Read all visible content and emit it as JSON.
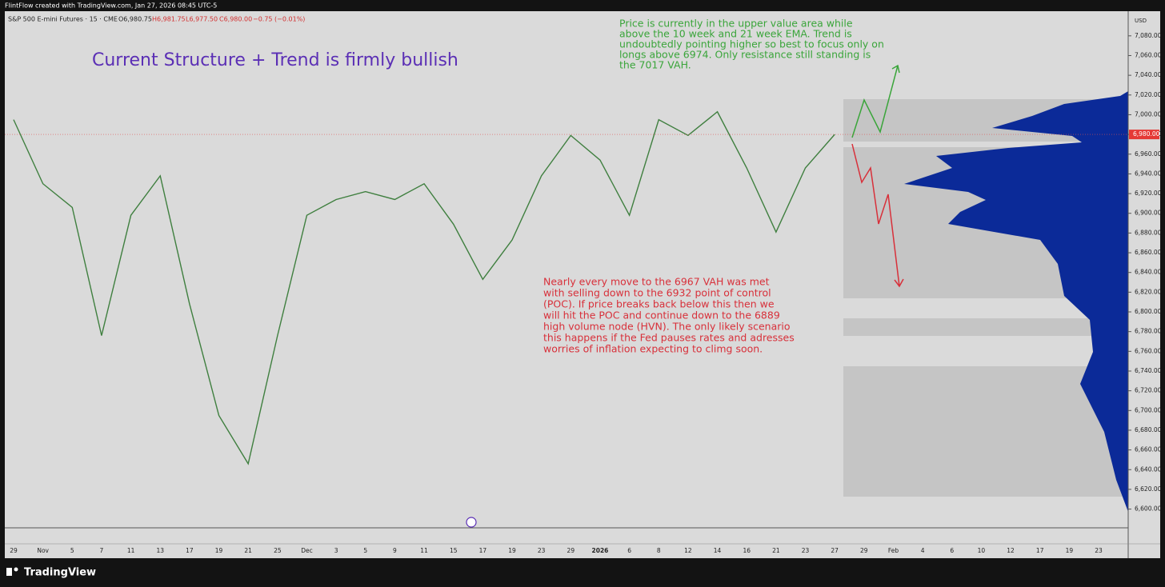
{
  "header": "FlintFlow created with TradingView.com, Jan 27, 2026 08:45 UTC-5",
  "footer": "TradingView",
  "chart_data": {
    "type": "line",
    "symbol": "S&P 500 E-mini Futures · 15 · CME",
    "ohlc": [
      "O6,980.75",
      "H6,981.75",
      "L6,977.50",
      "C6,980.00",
      "−0.75 (−0.01%)"
    ],
    "title": "Current Structure + Trend is firmly bullish",
    "annotation_bull": [
      "Price is currently in the upper value area while",
      "above the 10 week and 21 week EMA. Trend is",
      "undoubtedly pointing higher so best to focus only on",
      "longs above 6974. Only resistance still standing is",
      "the 7017 VAH."
    ],
    "annotation_bear": [
      "Nearly every move to the 6967 VAH was met",
      "with selling down to the 6932 point of control",
      "(POC). If price breaks back below this then we",
      "will hit the POC and continue down to the 6889",
      "high volume node (HVN). The only likely scenario",
      "this happens if the Fed pauses rates and adresses",
      "worries of inflation expecting to climg soon."
    ],
    "currency": "USD",
    "categories": [
      "29",
      "Nov",
      "5",
      "7",
      "11",
      "13",
      "17",
      "19",
      "21",
      "25",
      "Dec",
      "3",
      "5",
      "9",
      "11",
      "15",
      "17",
      "19",
      "23",
      "29",
      "2026",
      "6",
      "8",
      "12",
      "14",
      "16",
      "21",
      "23",
      "27",
      "29",
      "Feb",
      "4",
      "6",
      "10",
      "12",
      "17",
      "19",
      "23"
    ],
    "values": [
      6995,
      6930,
      6906,
      6776,
      6898,
      6938,
      6808,
      6695,
      6646,
      6776,
      6898,
      6914,
      6922,
      6914,
      6930,
      6889,
      6833,
      6873,
      6938,
      6979,
      6954,
      6898,
      6995,
      6979,
      7003,
      6946,
      6881,
      6946,
      6980,
      null,
      null,
      null,
      null,
      null,
      null,
      null,
      null,
      null
    ],
    "color": "#3f7f3f",
    "last_price": {
      "value": 6980,
      "label": "6,980.00"
    },
    "ylim": [
      6581,
      7105
    ],
    "yticks": [
      {
        "value": 7080,
        "label": "7,080.00"
      },
      {
        "value": 7060,
        "label": "7,060.00"
      },
      {
        "value": 7040,
        "label": "7,040.00"
      },
      {
        "value": 7020,
        "label": "7,020.00"
      },
      {
        "value": 7000,
        "label": "7,000.00"
      },
      {
        "value": 6980,
        "label": "6,980.00"
      },
      {
        "value": 6960,
        "label": "6,960.00"
      },
      {
        "value": 6940,
        "label": "6,940.00"
      },
      {
        "value": 6920,
        "label": "6,920.00"
      },
      {
        "value": 6900,
        "label": "6,900.00"
      },
      {
        "value": 6880,
        "label": "6,880.00"
      },
      {
        "value": 6860,
        "label": "6,860.00"
      },
      {
        "value": 6840,
        "label": "6,840.00"
      },
      {
        "value": 6820,
        "label": "6,820.00"
      },
      {
        "value": 6800,
        "label": "6,800.00"
      },
      {
        "value": 6780,
        "label": "6,780.00"
      },
      {
        "value": 6760,
        "label": "6,760.00"
      },
      {
        "value": 6740,
        "label": "6,740.00"
      },
      {
        "value": 6720,
        "label": "6,720.00"
      },
      {
        "value": 6700,
        "label": "6,700.00"
      },
      {
        "value": 6680,
        "label": "6,680.00"
      },
      {
        "value": 6660,
        "label": "6,660.00"
      },
      {
        "value": 6640,
        "label": "6,640.00"
      },
      {
        "value": 6620,
        "label": "6,620.00"
      },
      {
        "value": 6600,
        "label": "6,600.00"
      }
    ]
  }
}
